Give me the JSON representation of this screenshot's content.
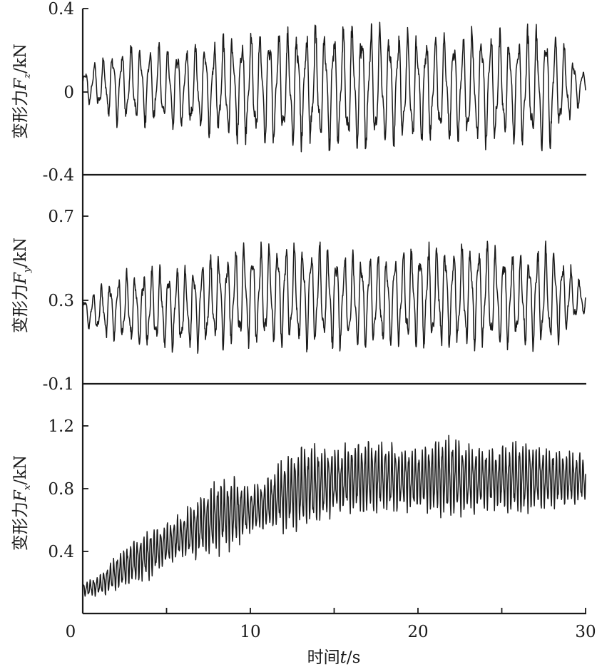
{
  "chart_data": [
    {
      "type": "line",
      "ylabel_prefix": "变形力",
      "ylabel_var": "F",
      "ylabel_sub": "z",
      "ylabel_unit": "/kN",
      "yticks": [
        "0.4",
        "0",
        "-0.4"
      ],
      "ylim": [
        -0.4,
        0.4
      ],
      "xlim": [
        0,
        30
      ],
      "series": [
        {
          "x": [
            0,
            2,
            4,
            6,
            8,
            10,
            12,
            14,
            16,
            18,
            20,
            22,
            24,
            26,
            28,
            30
          ],
          "mean": [
            0.03,
            0.03,
            0.03,
            0.02,
            0.02,
            0.02,
            0.02,
            0.02,
            0.02,
            0.02,
            0.02,
            0.02,
            0.02,
            0.02,
            0.02,
            0.03
          ],
          "amplitude": [
            0.06,
            0.16,
            0.17,
            0.18,
            0.21,
            0.24,
            0.25,
            0.26,
            0.28,
            0.26,
            0.24,
            0.24,
            0.25,
            0.24,
            0.26,
            0.05
          ]
        }
      ]
    },
    {
      "type": "line",
      "ylabel_prefix": "变形力",
      "ylabel_var": "F",
      "ylabel_sub": "y",
      "ylabel_unit": "/kN",
      "yticks": [
        "0.7",
        "0.3",
        "-0.1"
      ],
      "ylim": [
        -0.1,
        0.7
      ],
      "xlim": [
        0,
        30
      ],
      "series": [
        {
          "x": [
            0,
            2,
            4,
            6,
            8,
            10,
            12,
            14,
            16,
            18,
            20,
            22,
            24,
            26,
            28,
            30
          ],
          "mean": [
            0.24,
            0.26,
            0.26,
            0.26,
            0.3,
            0.32,
            0.32,
            0.32,
            0.3,
            0.3,
            0.32,
            0.32,
            0.32,
            0.3,
            0.32,
            0.3
          ],
          "amplitude": [
            0.06,
            0.14,
            0.17,
            0.18,
            0.2,
            0.22,
            0.23,
            0.22,
            0.2,
            0.2,
            0.22,
            0.22,
            0.23,
            0.2,
            0.22,
            0.06
          ]
        }
      ]
    },
    {
      "type": "line",
      "ylabel_prefix": "变形力",
      "ylabel_var": "F",
      "ylabel_sub": "x",
      "ylabel_unit": "/kN",
      "yticks": [
        "1.2",
        "0.8",
        "0.4"
      ],
      "ylim": [
        0,
        1.3
      ],
      "xlim": [
        0,
        30
      ],
      "xticks": [
        "0",
        "10",
        "20",
        "30"
      ],
      "xlabel_prefix": "时间",
      "xlabel_var": "t",
      "xlabel_unit": "/s",
      "series": [
        {
          "x": [
            0,
            1,
            2,
            3,
            4,
            5,
            6,
            7,
            8,
            9,
            10,
            11,
            12,
            13,
            14,
            15,
            16,
            17,
            18,
            19,
            20,
            21,
            22,
            23,
            24,
            25,
            26,
            27,
            28,
            29,
            30
          ],
          "mean": [
            0.15,
            0.18,
            0.26,
            0.33,
            0.38,
            0.44,
            0.5,
            0.56,
            0.62,
            0.65,
            0.66,
            0.7,
            0.76,
            0.8,
            0.82,
            0.84,
            0.86,
            0.88,
            0.87,
            0.86,
            0.86,
            0.87,
            0.87,
            0.86,
            0.86,
            0.86,
            0.87,
            0.87,
            0.86,
            0.86,
            0.86
          ],
          "amplitude": [
            0.04,
            0.06,
            0.1,
            0.13,
            0.14,
            0.12,
            0.13,
            0.18,
            0.22,
            0.2,
            0.13,
            0.15,
            0.2,
            0.25,
            0.23,
            0.18,
            0.2,
            0.22,
            0.2,
            0.18,
            0.18,
            0.22,
            0.24,
            0.2,
            0.18,
            0.18,
            0.22,
            0.2,
            0.17,
            0.16,
            0.14
          ]
        }
      ]
    }
  ]
}
